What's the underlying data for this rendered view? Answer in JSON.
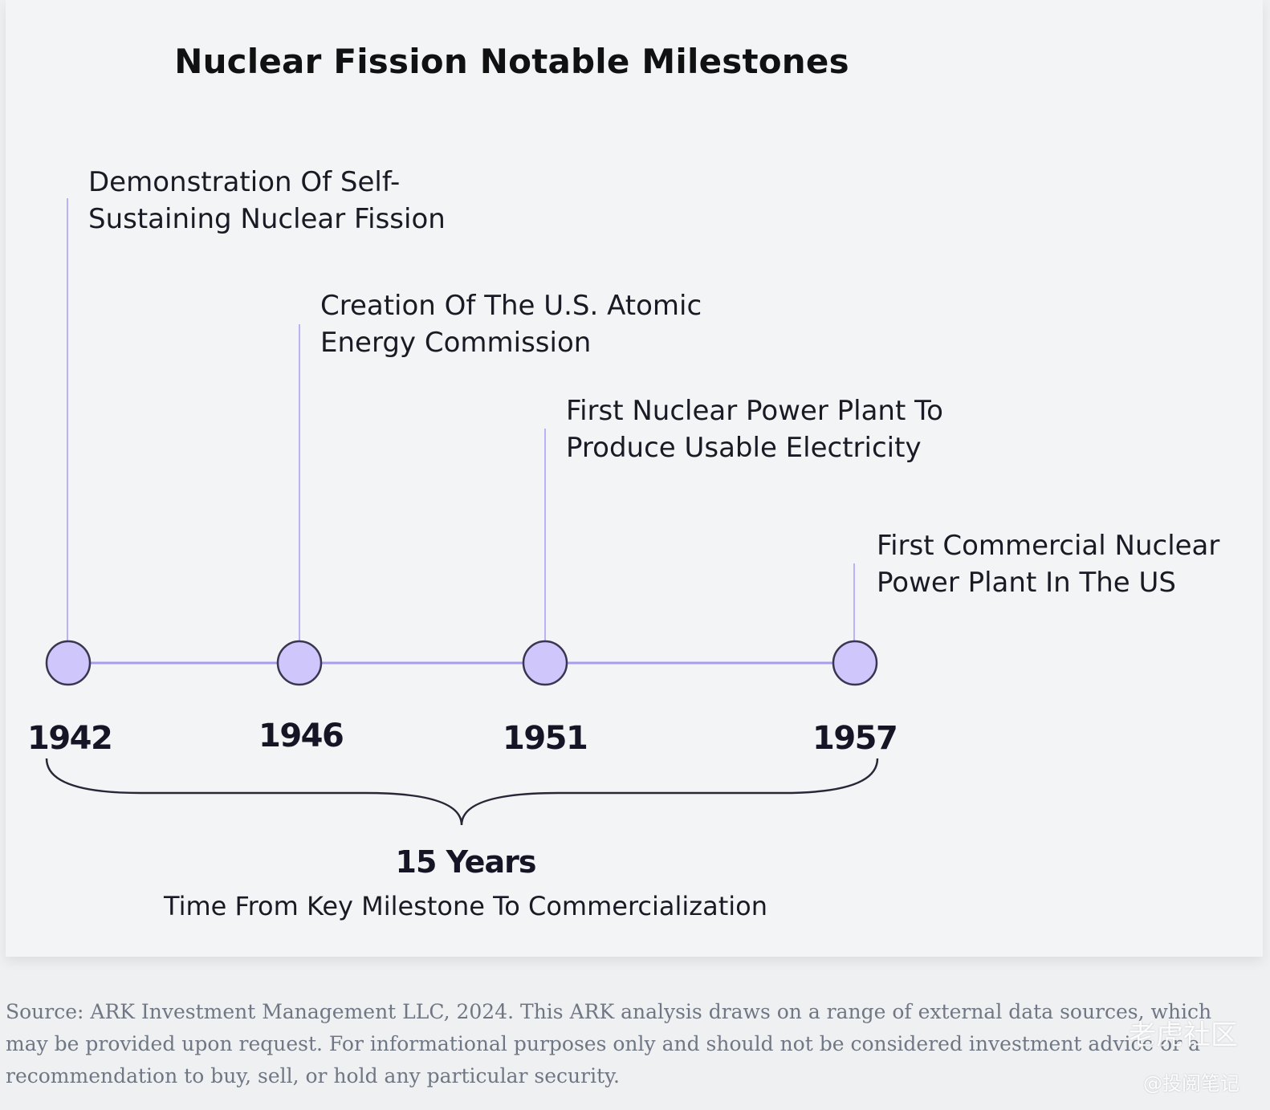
{
  "title": "Nuclear Fission Notable Milestones",
  "milestones": [
    {
      "year": "1942",
      "label": "Demonstration Of Self-\nSustaining Nuclear Fission"
    },
    {
      "year": "1946",
      "label": "Creation Of The U.S. Atomic\nEnergy Commission"
    },
    {
      "year": "1951",
      "label": "First Nuclear Power Plant To\nProduce Usable Electricity"
    },
    {
      "year": "1957",
      "label": "First Commercial Nuclear\nPower Plant In The US"
    }
  ],
  "span": {
    "value": "15 Years",
    "description": "Time From Key Milestone To Commercialization"
  },
  "source": "Source: ARK Investment Management LLC, 2024. This ARK analysis draws on a range of external data sources, which may be provided upon request. For informational purposes only and should not be considered investment advice or a recommendation to buy, sell, or hold any particular security.",
  "watermark": {
    "logo_text": "老虎社区",
    "handle": "@投阅笔记"
  },
  "colors": {
    "accent_line": "#a79cf2",
    "node_fill": "#cfc6fb",
    "node_stroke": "#3a3550",
    "text_dark": "#151525"
  }
}
